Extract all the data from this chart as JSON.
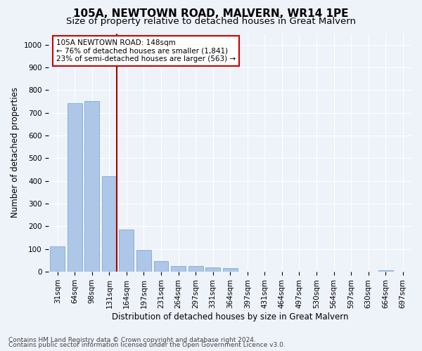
{
  "title": "105A, NEWTOWN ROAD, MALVERN, WR14 1PE",
  "subtitle": "Size of property relative to detached houses in Great Malvern",
  "xlabel": "Distribution of detached houses by size in Great Malvern",
  "ylabel": "Number of detached properties",
  "footnote1": "Contains HM Land Registry data © Crown copyright and database right 2024.",
  "footnote2": "Contains public sector information licensed under the Open Government Licence v3.0.",
  "bar_labels": [
    "31sqm",
    "64sqm",
    "98sqm",
    "131sqm",
    "164sqm",
    "197sqm",
    "231sqm",
    "264sqm",
    "297sqm",
    "331sqm",
    "364sqm",
    "397sqm",
    "431sqm",
    "464sqm",
    "497sqm",
    "530sqm",
    "564sqm",
    "597sqm",
    "630sqm",
    "664sqm",
    "697sqm"
  ],
  "bar_values": [
    113,
    742,
    752,
    420,
    187,
    97,
    46,
    25,
    25,
    18,
    16,
    0,
    0,
    0,
    0,
    0,
    0,
    0,
    0,
    8,
    0
  ],
  "bar_color": "#aec6e8",
  "bar_edgecolor": "#7aaad0",
  "vline_x": 3,
  "annotation_lines": [
    "105A NEWTOWN ROAD: 148sqm",
    "← 76% of detached houses are smaller (1,841)",
    "23% of semi-detached houses are larger (563) →"
  ],
  "annotation_box_color": "#ffffff",
  "annotation_box_edgecolor": "#cc0000",
  "vline_color": "#aa0000",
  "ylim": [
    0,
    1050
  ],
  "yticks": [
    0,
    100,
    200,
    300,
    400,
    500,
    600,
    700,
    800,
    900,
    1000
  ],
  "bg_color": "#eef2f9",
  "grid_color": "#ffffff",
  "title_fontsize": 11,
  "subtitle_fontsize": 9.5,
  "axis_label_fontsize": 8.5,
  "tick_fontsize": 7.5,
  "annotation_fontsize": 7.5,
  "footnote_fontsize": 6.5
}
